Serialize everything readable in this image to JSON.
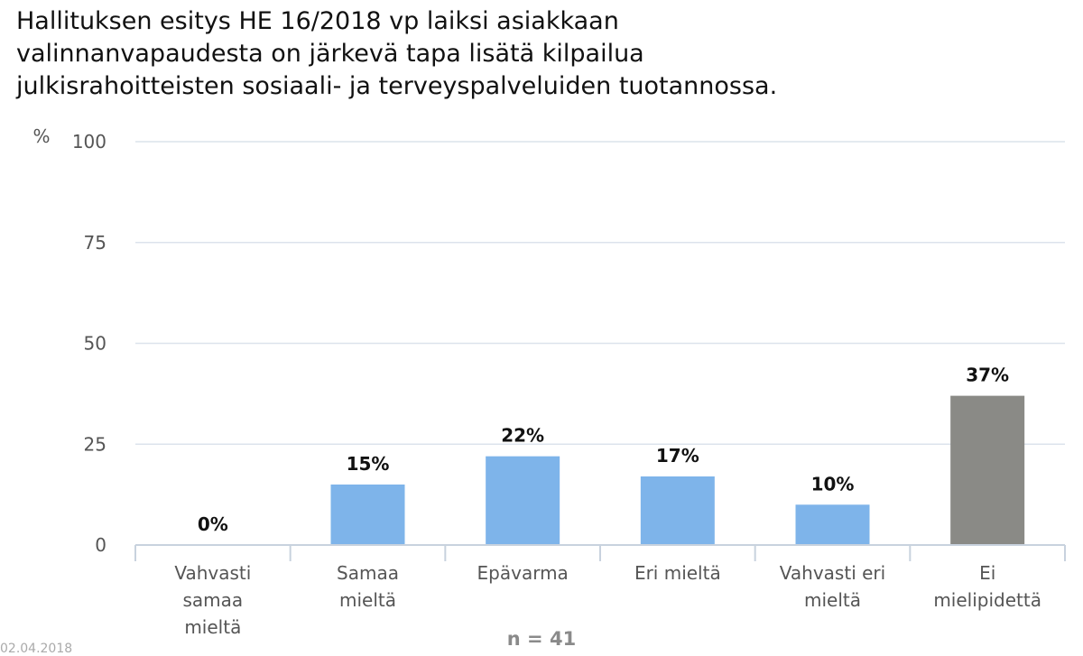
{
  "title_lines": [
    "Hallituksen esitys HE 16/2018 vp laiksi asiakkaan",
    "valinnanvapaudesta on järkevä tapa lisätä kilpailua",
    "julkisrahoitteisten sosiaali- ja terveyspalveluiden tuotannossa."
  ],
  "footer": {
    "n_label": "n = 41",
    "date_stub": "02.04.2018"
  },
  "chart_data": {
    "type": "bar",
    "ylabel": "%",
    "ylim": [
      0,
      100
    ],
    "yticks": [
      0,
      25,
      50,
      75,
      100
    ],
    "grid": true,
    "categories": [
      [
        "Vahvasti",
        "samaa",
        "mieltä"
      ],
      [
        "Samaa",
        "mieltä"
      ],
      [
        "Epävarma"
      ],
      [
        "Eri mieltä"
      ],
      [
        "Vahvasti eri",
        "mieltä"
      ],
      [
        "Ei",
        "mielipidettä"
      ]
    ],
    "values": [
      0,
      15,
      22,
      17,
      10,
      37
    ],
    "value_labels": [
      "0%",
      "15%",
      "22%",
      "17%",
      "10%",
      "37%"
    ],
    "colors": [
      "#7eb4ea",
      "#7eb4ea",
      "#7eb4ea",
      "#7eb4ea",
      "#7eb4ea",
      "#8a8a86"
    ]
  }
}
